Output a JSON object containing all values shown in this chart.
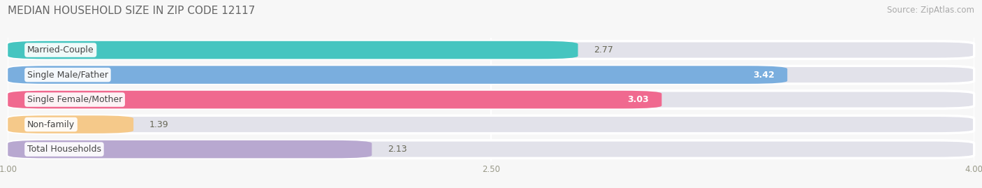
{
  "title": "MEDIAN HOUSEHOLD SIZE IN ZIP CODE 12117",
  "source": "Source: ZipAtlas.com",
  "categories": [
    "Married-Couple",
    "Single Male/Father",
    "Single Female/Mother",
    "Non-family",
    "Total Households"
  ],
  "values": [
    2.77,
    3.42,
    3.03,
    1.39,
    2.13
  ],
  "bar_colors": [
    "#45c5c0",
    "#7aaede",
    "#f0698f",
    "#f5c98a",
    "#b8a8d0"
  ],
  "value_inside": [
    false,
    true,
    true,
    false,
    false
  ],
  "xlim_min": 1.0,
  "xlim_max": 4.0,
  "xticks": [
    1.0,
    2.5,
    4.0
  ],
  "xtick_labels": [
    "1.00",
    "2.50",
    "4.00"
  ],
  "bg_color": "#f7f7f7",
  "bar_bg_color": "#e2e2ea",
  "gap_color": "#f7f7f7",
  "title_fontsize": 11,
  "source_fontsize": 8.5,
  "label_fontsize": 9,
  "value_fontsize": 9,
  "tick_fontsize": 8.5,
  "bar_height": 0.72,
  "bar_gap": 0.28
}
